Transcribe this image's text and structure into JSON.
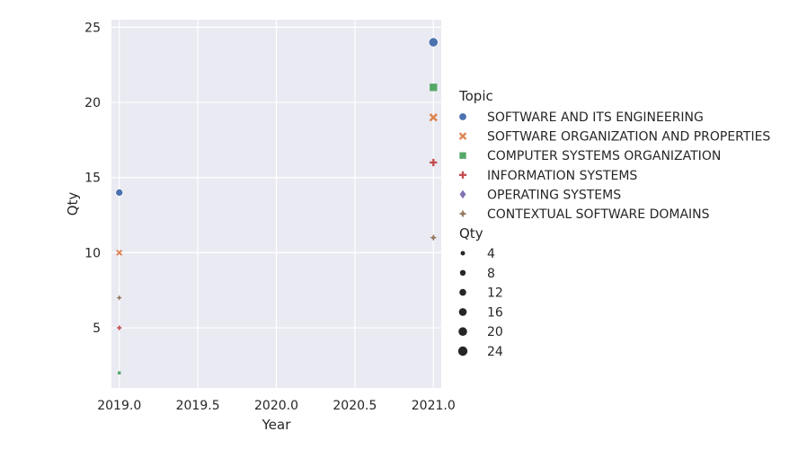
{
  "chart_data": {
    "type": "scatter",
    "xlabel": "Year",
    "ylabel": "Qty",
    "xlim": [
      2018.95,
      2021.05
    ],
    "ylim": [
      1.0,
      25.5
    ],
    "xticks": [
      2019.0,
      2019.5,
      2020.0,
      2020.5,
      2021.0
    ],
    "xtick_labels": [
      "2019.0",
      "2019.5",
      "2020.0",
      "2020.5",
      "2021.0"
    ],
    "yticks": [
      5,
      10,
      15,
      20,
      25
    ],
    "ytick_labels": [
      "5",
      "10",
      "15",
      "20",
      "25"
    ],
    "grid": true,
    "legend_placement": "right",
    "hue_title": "Topic",
    "size_title": "Qty",
    "series": [
      {
        "name": "SOFTWARE AND ITS ENGINEERING",
        "color": "#4c72b0",
        "marker": "circle",
        "points": [
          {
            "x": 2019,
            "y": 14
          },
          {
            "x": 2021,
            "y": 24
          }
        ]
      },
      {
        "name": "SOFTWARE ORGANIZATION AND PROPERTIES",
        "color": "#dd8452",
        "marker": "x",
        "points": [
          {
            "x": 2019,
            "y": 10
          },
          {
            "x": 2021,
            "y": 19
          }
        ]
      },
      {
        "name": "COMPUTER SYSTEMS ORGANIZATION",
        "color": "#55a868",
        "marker": "square",
        "points": [
          {
            "x": 2019,
            "y": 2
          },
          {
            "x": 2021,
            "y": 21
          }
        ]
      },
      {
        "name": "INFORMATION SYSTEMS",
        "color": "#c44e52",
        "marker": "plus",
        "points": [
          {
            "x": 2019,
            "y": 5
          },
          {
            "x": 2021,
            "y": 16
          }
        ]
      },
      {
        "name": "OPERATING SYSTEMS",
        "color": "#8172b3",
        "marker": "diamond",
        "points": []
      },
      {
        "name": "CONTEXTUAL SOFTWARE DOMAINS",
        "color": "#937860",
        "marker": "star",
        "points": [
          {
            "x": 2019,
            "y": 7
          },
          {
            "x": 2021,
            "y": 11
          }
        ]
      }
    ],
    "size_legend": [
      "4",
      "8",
      "12",
      "16",
      "20",
      "24"
    ]
  },
  "colors": {
    "plot_background": "#eaeaf2",
    "grid": "#ffffff",
    "size_marker": "#262626"
  }
}
